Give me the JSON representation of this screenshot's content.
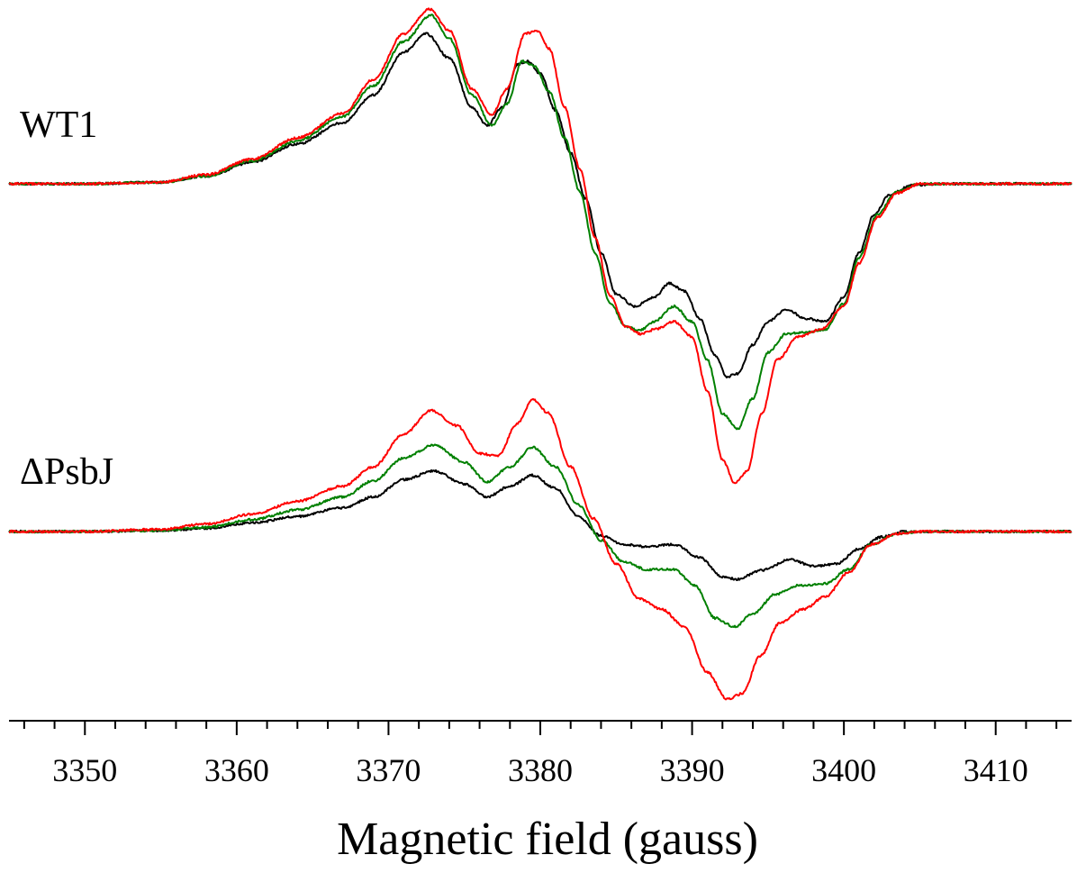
{
  "chart_data": {
    "type": "line",
    "title": "",
    "xlabel": "Magnetic field (gauss)",
    "ylabel": "",
    "xlim": [
      3345,
      3415
    ],
    "x_ticks": [
      3350,
      3360,
      3370,
      3380,
      3390,
      3400,
      3410
    ],
    "x_minor_step": 2,
    "y_axis_shown": false,
    "grid": false,
    "legend": "none",
    "panels": [
      {
        "label": "WT1",
        "series": [
          {
            "color": "#000000",
            "points": [
              [
                3345,
                0
              ],
              [
                3350,
                0
              ],
              [
                3355,
                0.01
              ],
              [
                3358,
                0.05
              ],
              [
                3361,
                0.14
              ],
              [
                3364,
                0.26
              ],
              [
                3367,
                0.4
              ],
              [
                3369,
                0.58
              ],
              [
                3371,
                0.86
              ],
              [
                3372.5,
                0.98
              ],
              [
                3374,
                0.82
              ],
              [
                3375.5,
                0.5
              ],
              [
                3376.5,
                0.38
              ],
              [
                3377.5,
                0.5
              ],
              [
                3378.5,
                0.78
              ],
              [
                3379.2,
                0.8
              ],
              [
                3380,
                0.72
              ],
              [
                3381,
                0.48
              ],
              [
                3382,
                0.2
              ],
              [
                3383,
                -0.1
              ],
              [
                3384,
                -0.45
              ],
              [
                3385,
                -0.72
              ],
              [
                3386.2,
                -0.8
              ],
              [
                3387.5,
                -0.74
              ],
              [
                3388.5,
                -0.65
              ],
              [
                3389.5,
                -0.7
              ],
              [
                3390.5,
                -0.88
              ],
              [
                3391.5,
                -1.12
              ],
              [
                3392.3,
                -1.26
              ],
              [
                3393,
                -1.24
              ],
              [
                3394,
                -1.05
              ],
              [
                3395,
                -0.9
              ],
              [
                3396.2,
                -0.82
              ],
              [
                3397.5,
                -0.88
              ],
              [
                3398.8,
                -0.9
              ],
              [
                3400,
                -0.74
              ],
              [
                3401,
                -0.45
              ],
              [
                3402,
                -0.2
              ],
              [
                3403,
                -0.07
              ],
              [
                3404.5,
                -0.01
              ],
              [
                3407,
                0
              ],
              [
                3415,
                0
              ]
            ]
          },
          {
            "color": "#008000",
            "points": [
              [
                3345,
                0
              ],
              [
                3350,
                0
              ],
              [
                3355,
                0.01
              ],
              [
                3358,
                0.05
              ],
              [
                3361,
                0.15
              ],
              [
                3364,
                0.28
              ],
              [
                3367,
                0.44
              ],
              [
                3369,
                0.64
              ],
              [
                3371,
                0.93
              ],
              [
                3372.8,
                1.1
              ],
              [
                3374,
                0.95
              ],
              [
                3375.5,
                0.58
              ],
              [
                3376.8,
                0.38
              ],
              [
                3377.8,
                0.52
              ],
              [
                3378.8,
                0.8
              ],
              [
                3379.6,
                0.77
              ],
              [
                3380.6,
                0.6
              ],
              [
                3381.6,
                0.3
              ],
              [
                3382.6,
                -0.05
              ],
              [
                3383.6,
                -0.45
              ],
              [
                3384.6,
                -0.78
              ],
              [
                3385.6,
                -0.93
              ],
              [
                3386.5,
                -0.96
              ],
              [
                3387.5,
                -0.9
              ],
              [
                3388.8,
                -0.8
              ],
              [
                3390,
                -0.9
              ],
              [
                3391,
                -1.15
              ],
              [
                3392,
                -1.5
              ],
              [
                3393,
                -1.6
              ],
              [
                3394,
                -1.4
              ],
              [
                3395,
                -1.1
              ],
              [
                3396.2,
                -0.98
              ],
              [
                3397.5,
                -0.97
              ],
              [
                3398.8,
                -0.95
              ],
              [
                3400,
                -0.78
              ],
              [
                3401,
                -0.48
              ],
              [
                3402.2,
                -0.2
              ],
              [
                3403.5,
                -0.05
              ],
              [
                3405,
                0
              ],
              [
                3415,
                0
              ]
            ]
          },
          {
            "color": "#ff0000",
            "points": [
              [
                3345,
                0
              ],
              [
                3350,
                0
              ],
              [
                3355,
                0.01
              ],
              [
                3358,
                0.06
              ],
              [
                3361,
                0.16
              ],
              [
                3364,
                0.3
              ],
              [
                3367,
                0.46
              ],
              [
                3369,
                0.68
              ],
              [
                3371,
                0.98
              ],
              [
                3372.7,
                1.14
              ],
              [
                3374,
                1.0
              ],
              [
                3375.5,
                0.62
              ],
              [
                3376.8,
                0.45
              ],
              [
                3377.8,
                0.62
              ],
              [
                3379,
                0.98
              ],
              [
                3379.8,
                1.0
              ],
              [
                3380.6,
                0.88
              ],
              [
                3381.6,
                0.5
              ],
              [
                3382.6,
                0.1
              ],
              [
                3383.6,
                -0.35
              ],
              [
                3384.6,
                -0.73
              ],
              [
                3385.6,
                -0.93
              ],
              [
                3386.6,
                -0.98
              ],
              [
                3387.6,
                -0.95
              ],
              [
                3388.8,
                -0.9
              ],
              [
                3390,
                -1.0
              ],
              [
                3391,
                -1.35
              ],
              [
                3392,
                -1.8
              ],
              [
                3392.8,
                -1.95
              ],
              [
                3393.6,
                -1.88
              ],
              [
                3394.6,
                -1.5
              ],
              [
                3395.6,
                -1.15
              ],
              [
                3397,
                -1.0
              ],
              [
                3398.5,
                -0.95
              ],
              [
                3400,
                -0.8
              ],
              [
                3401,
                -0.52
              ],
              [
                3402.2,
                -0.22
              ],
              [
                3403.5,
                -0.06
              ],
              [
                3405,
                0
              ],
              [
                3415,
                0
              ]
            ]
          }
        ]
      },
      {
        "label": "ΔPsbJ",
        "series": [
          {
            "color": "#000000",
            "points": [
              [
                3345,
                0
              ],
              [
                3350,
                0
              ],
              [
                3355,
                0.01
              ],
              [
                3358,
                0.03
              ],
              [
                3361,
                0.08
              ],
              [
                3364,
                0.14
              ],
              [
                3367,
                0.22
              ],
              [
                3369,
                0.32
              ],
              [
                3371,
                0.48
              ],
              [
                3373,
                0.56
              ],
              [
                3375,
                0.44
              ],
              [
                3376.5,
                0.32
              ],
              [
                3378,
                0.42
              ],
              [
                3379.5,
                0.52
              ],
              [
                3381,
                0.4
              ],
              [
                3382.5,
                0.14
              ],
              [
                3384,
                -0.04
              ],
              [
                3385.5,
                -0.12
              ],
              [
                3387,
                -0.14
              ],
              [
                3388.8,
                -0.12
              ],
              [
                3390.5,
                -0.24
              ],
              [
                3392,
                -0.42
              ],
              [
                3393,
                -0.44
              ],
              [
                3394.5,
                -0.36
              ],
              [
                3396.5,
                -0.26
              ],
              [
                3398,
                -0.32
              ],
              [
                3399.5,
                -0.3
              ],
              [
                3401,
                -0.16
              ],
              [
                3402.5,
                -0.05
              ],
              [
                3404,
                0
              ],
              [
                3415,
                0
              ]
            ]
          },
          {
            "color": "#008000",
            "points": [
              [
                3345,
                0
              ],
              [
                3350,
                0
              ],
              [
                3355,
                0.01
              ],
              [
                3358,
                0.04
              ],
              [
                3361,
                0.11
              ],
              [
                3364,
                0.2
              ],
              [
                3367,
                0.32
              ],
              [
                3369,
                0.47
              ],
              [
                3371,
                0.68
              ],
              [
                3373,
                0.8
              ],
              [
                3375,
                0.64
              ],
              [
                3376.5,
                0.46
              ],
              [
                3378,
                0.6
              ],
              [
                3379.5,
                0.78
              ],
              [
                3381,
                0.6
              ],
              [
                3382.5,
                0.25
              ],
              [
                3384,
                -0.08
              ],
              [
                3385.5,
                -0.28
              ],
              [
                3387,
                -0.35
              ],
              [
                3388.8,
                -0.35
              ],
              [
                3390.2,
                -0.5
              ],
              [
                3391.5,
                -0.8
              ],
              [
                3392.8,
                -0.88
              ],
              [
                3394,
                -0.76
              ],
              [
                3395.5,
                -0.58
              ],
              [
                3397,
                -0.5
              ],
              [
                3398.8,
                -0.48
              ],
              [
                3400.3,
                -0.35
              ],
              [
                3401.8,
                -0.12
              ],
              [
                3403.5,
                -0.02
              ],
              [
                3405,
                0
              ],
              [
                3415,
                0
              ]
            ]
          },
          {
            "color": "#ff0000",
            "points": [
              [
                3345,
                0
              ],
              [
                3350,
                0
              ],
              [
                3355,
                0.02
              ],
              [
                3358,
                0.07
              ],
              [
                3361,
                0.16
              ],
              [
                3364,
                0.28
              ],
              [
                3367,
                0.42
              ],
              [
                3369,
                0.6
              ],
              [
                3371,
                0.9
              ],
              [
                3372.8,
                1.12
              ],
              [
                3374.5,
                0.98
              ],
              [
                3376,
                0.72
              ],
              [
                3377.2,
                0.7
              ],
              [
                3378.5,
                1.0
              ],
              [
                3379.5,
                1.22
              ],
              [
                3380.5,
                1.1
              ],
              [
                3382,
                0.6
              ],
              [
                3383.5,
                0.12
              ],
              [
                3385,
                -0.3
              ],
              [
                3386.5,
                -0.62
              ],
              [
                3388,
                -0.72
              ],
              [
                3389.5,
                -0.88
              ],
              [
                3391,
                -1.3
              ],
              [
                3392.3,
                -1.55
              ],
              [
                3393.3,
                -1.5
              ],
              [
                3394.5,
                -1.15
              ],
              [
                3395.8,
                -0.84
              ],
              [
                3397.3,
                -0.72
              ],
              [
                3398.8,
                -0.6
              ],
              [
                3400.3,
                -0.38
              ],
              [
                3401.8,
                -0.12
              ],
              [
                3403.5,
                -0.02
              ],
              [
                3405,
                0
              ],
              [
                3415,
                0
              ]
            ]
          }
        ]
      }
    ]
  }
}
